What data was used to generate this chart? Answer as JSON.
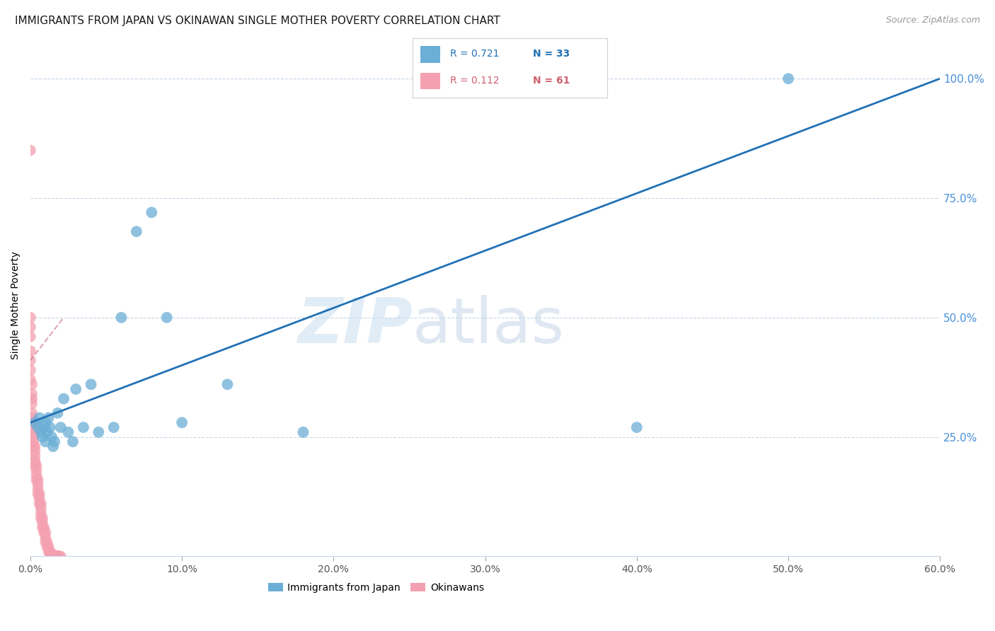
{
  "title": "IMMIGRANTS FROM JAPAN VS OKINAWAN SINGLE MOTHER POVERTY CORRELATION CHART",
  "source": "Source: ZipAtlas.com",
  "xlabel": "",
  "ylabel": "Single Mother Poverty",
  "xlim": [
    0.0,
    0.6
  ],
  "ylim": [
    0.0,
    1.05
  ],
  "xticks": [
    0.0,
    0.1,
    0.2,
    0.3,
    0.4,
    0.5,
    0.6
  ],
  "yticks_right": [
    0.25,
    0.5,
    0.75,
    1.0
  ],
  "ytick_labels_right": [
    "25.0%",
    "50.0%",
    "75.0%",
    "100.0%"
  ],
  "xtick_labels": [
    "0.0%",
    "10.0%",
    "20.0%",
    "30.0%",
    "40.0%",
    "50.0%",
    "60.0%"
  ],
  "blue_R": "0.721",
  "blue_N": "33",
  "pink_R": "0.112",
  "pink_N": "61",
  "blue_color": "#6baed6",
  "pink_color": "#f4a0b0",
  "trend_blue_color": "#2171b5",
  "trend_pink_color": "#d08090",
  "blue_trend_x0": 0.0,
  "blue_trend_y0": 0.28,
  "blue_trend_x1": 0.6,
  "blue_trend_y1": 1.0,
  "pink_trend_x0": 0.0,
  "pink_trend_y0": 0.41,
  "pink_trend_x1": 0.022,
  "pink_trend_y1": 0.5,
  "blue_scatter_x": [
    0.003,
    0.005,
    0.006,
    0.007,
    0.008,
    0.009,
    0.01,
    0.01,
    0.011,
    0.012,
    0.013,
    0.014,
    0.015,
    0.016,
    0.018,
    0.02,
    0.022,
    0.025,
    0.028,
    0.03,
    0.035,
    0.04,
    0.045,
    0.055,
    0.06,
    0.07,
    0.08,
    0.09,
    0.1,
    0.13,
    0.18,
    0.4,
    0.5
  ],
  "blue_scatter_y": [
    0.28,
    0.27,
    0.29,
    0.26,
    0.25,
    0.27,
    0.28,
    0.24,
    0.26,
    0.29,
    0.27,
    0.25,
    0.23,
    0.24,
    0.3,
    0.27,
    0.33,
    0.26,
    0.24,
    0.35,
    0.27,
    0.36,
    0.26,
    0.27,
    0.5,
    0.68,
    0.72,
    0.5,
    0.28,
    0.36,
    0.26,
    0.27,
    1.0
  ],
  "pink_scatter_x": [
    0.0,
    0.0,
    0.0,
    0.0,
    0.0,
    0.0,
    0.0,
    0.0,
    0.001,
    0.001,
    0.001,
    0.001,
    0.001,
    0.001,
    0.002,
    0.002,
    0.002,
    0.002,
    0.002,
    0.002,
    0.003,
    0.003,
    0.003,
    0.003,
    0.003,
    0.004,
    0.004,
    0.004,
    0.004,
    0.005,
    0.005,
    0.005,
    0.005,
    0.006,
    0.006,
    0.006,
    0.007,
    0.007,
    0.007,
    0.007,
    0.008,
    0.008,
    0.008,
    0.009,
    0.009,
    0.01,
    0.01,
    0.01,
    0.011,
    0.011,
    0.012,
    0.012,
    0.013,
    0.013,
    0.014,
    0.015,
    0.016,
    0.017,
    0.018,
    0.019,
    0.02
  ],
  "pink_scatter_y": [
    0.85,
    0.5,
    0.48,
    0.46,
    0.43,
    0.41,
    0.39,
    0.37,
    0.36,
    0.34,
    0.33,
    0.32,
    0.3,
    0.29,
    0.28,
    0.27,
    0.26,
    0.25,
    0.24,
    0.23,
    0.23,
    0.22,
    0.21,
    0.2,
    0.19,
    0.19,
    0.18,
    0.17,
    0.16,
    0.16,
    0.15,
    0.14,
    0.13,
    0.13,
    0.12,
    0.11,
    0.11,
    0.1,
    0.09,
    0.08,
    0.08,
    0.07,
    0.06,
    0.06,
    0.05,
    0.05,
    0.04,
    0.03,
    0.03,
    0.02,
    0.02,
    0.01,
    0.01,
    0.005,
    0.005,
    0.003,
    0.002,
    0.001,
    0.001,
    0.0,
    0.0
  ],
  "watermark_zip": "ZIP",
  "watermark_atlas": "atlas",
  "background_color": "#ffffff",
  "grid_color": "#c8d8e8",
  "title_fontsize": 11,
  "axis_label_color": "#000000",
  "right_axis_color": "#4a90d9",
  "legend_blue_label": "Immigrants from Japan",
  "legend_pink_label": "Okinawans"
}
